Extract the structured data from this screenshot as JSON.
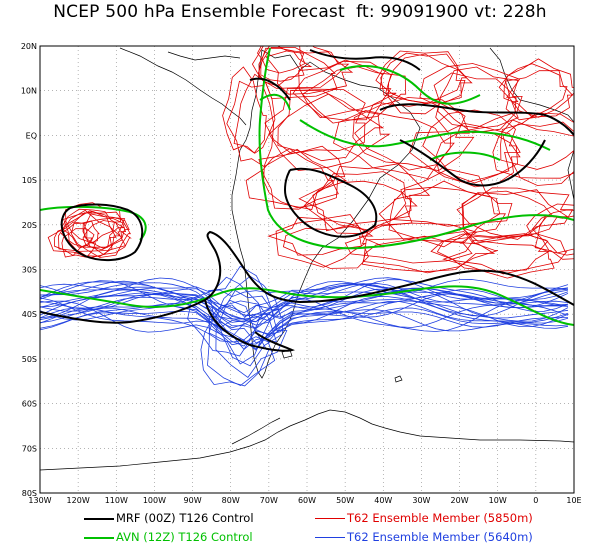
{
  "title": "NCEP 500 hPa Ensemble Forecast  ft: 99091900 vt: 228h",
  "map": {
    "lat_labels": [
      "20N",
      "10N",
      "EQ",
      "10S",
      "20S",
      "30S",
      "40S",
      "50S",
      "60S",
      "70S",
      "80S"
    ],
    "lon_labels": [
      "130W",
      "120W",
      "110W",
      "100W",
      "90W",
      "80W",
      "70W",
      "60W",
      "50W",
      "40W",
      "30W",
      "20W",
      "10W",
      "0",
      "10E"
    ]
  },
  "legend": [
    {
      "label": "MRF (00Z) T126 Control",
      "color": "#000000"
    },
    {
      "label": "T62 Ensemble Member (5850m)",
      "color": "#e00000"
    },
    {
      "label": "AVN (12Z) T126 Control",
      "color": "#00c000"
    },
    {
      "label": "T62 Ensemble Member (5640m)",
      "color": "#2040e0"
    }
  ]
}
